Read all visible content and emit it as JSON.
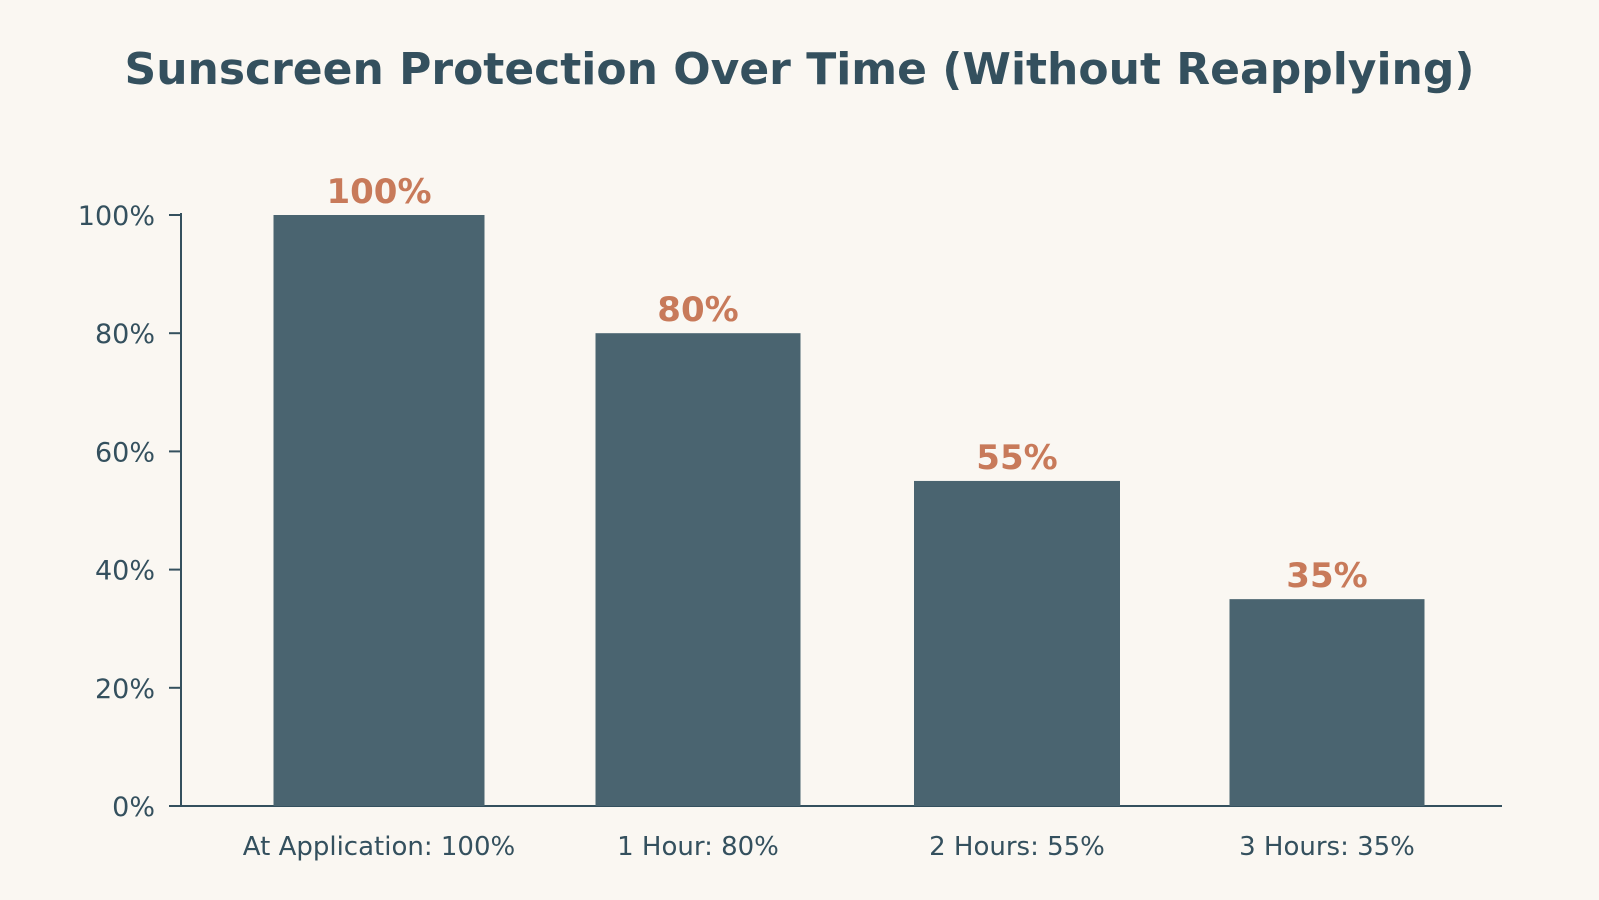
{
  "chart_data": {
    "type": "bar",
    "title": "Sunscreen Protection Over Time (Without Reapplying)",
    "categories": [
      "At Application: 100%",
      "1 Hour: 80%",
      "2 Hours: 55%",
      "3 Hours: 35%"
    ],
    "values": [
      100,
      80,
      55,
      35
    ],
    "data_labels": [
      "100%",
      "80%",
      "55%",
      "35%"
    ],
    "ylim": [
      0,
      100
    ],
    "y_ticks": [
      0,
      20,
      40,
      60,
      80,
      100
    ],
    "y_tick_labels": [
      "0%",
      "20%",
      "40%",
      "60%",
      "80%",
      "100%"
    ],
    "xlabel": "",
    "ylabel": "",
    "grid": false,
    "legend": "none",
    "colors": {
      "bar": "#4a6470",
      "data_label": "#c87a5a",
      "axis": "#34505e",
      "text": "#34505e",
      "background": "#faf7f2"
    }
  }
}
